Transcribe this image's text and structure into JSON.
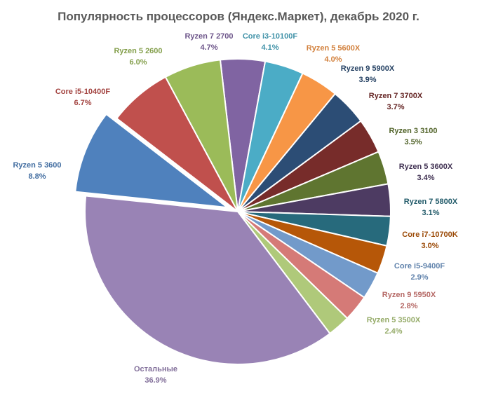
{
  "chart_data": {
    "type": "pie",
    "title": "Популярность процессоров (Яндекс.Маркет), декабрь 2020 г.",
    "slices": [
      {
        "label": "Ryzen 7 2700",
        "value": 4.7,
        "value_text": "4.7%",
        "color": "#8064a2",
        "exploded": false
      },
      {
        "label": "Core i3-10100F",
        "value": 4.1,
        "value_text": "4.1%",
        "color": "#4bacc6",
        "exploded": false
      },
      {
        "label": "Ryzen 5 5600X",
        "value": 4.0,
        "value_text": "4.0%",
        "color": "#f79646",
        "exploded": false
      },
      {
        "label": "Ryzen 9 5900X",
        "value": 3.9,
        "value_text": "3.9%",
        "color": "#2c4d75",
        "exploded": false
      },
      {
        "label": "Ryzen 7 3700X",
        "value": 3.7,
        "value_text": "3.7%",
        "color": "#772c2a",
        "exploded": false
      },
      {
        "label": "Ryzen 3 3100",
        "value": 3.5,
        "value_text": "3.5%",
        "color": "#5f7530",
        "exploded": false
      },
      {
        "label": "Ryzen 5 3600X",
        "value": 3.4,
        "value_text": "3.4%",
        "color": "#4d3b62",
        "exploded": false
      },
      {
        "label": "Ryzen 7 5800X",
        "value": 3.1,
        "value_text": "3.1%",
        "color": "#276a7c",
        "exploded": false
      },
      {
        "label": "Core i7-10700K",
        "value": 3.0,
        "value_text": "3.0%",
        "color": "#b65708",
        "exploded": false
      },
      {
        "label": "Core i5-9400F",
        "value": 2.9,
        "value_text": "2.9%",
        "color": "#729aca",
        "exploded": false
      },
      {
        "label": "Ryzen 9 5950X",
        "value": 2.8,
        "value_text": "2.8%",
        "color": "#d57a77",
        "exploded": false
      },
      {
        "label": "Ryzen 5 3500X",
        "value": 2.4,
        "value_text": "2.4%",
        "color": "#afc97a",
        "exploded": false
      },
      {
        "label": "Остальные",
        "value": 36.9,
        "value_text": "36.9%",
        "color": "#9983b5",
        "exploded": false
      },
      {
        "label": "Ryzen 5 3600",
        "value": 8.8,
        "value_text": "8.8%",
        "color": "#4f81bd",
        "exploded": true
      },
      {
        "label": "Core i5-10400F",
        "value": 6.7,
        "value_text": "6.7%",
        "color": "#c0504d",
        "exploded": false
      },
      {
        "label": "Ryzen 5 2600",
        "value": 6.0,
        "value_text": "6.0%",
        "color": "#9bbb59",
        "exploded": false
      }
    ]
  }
}
